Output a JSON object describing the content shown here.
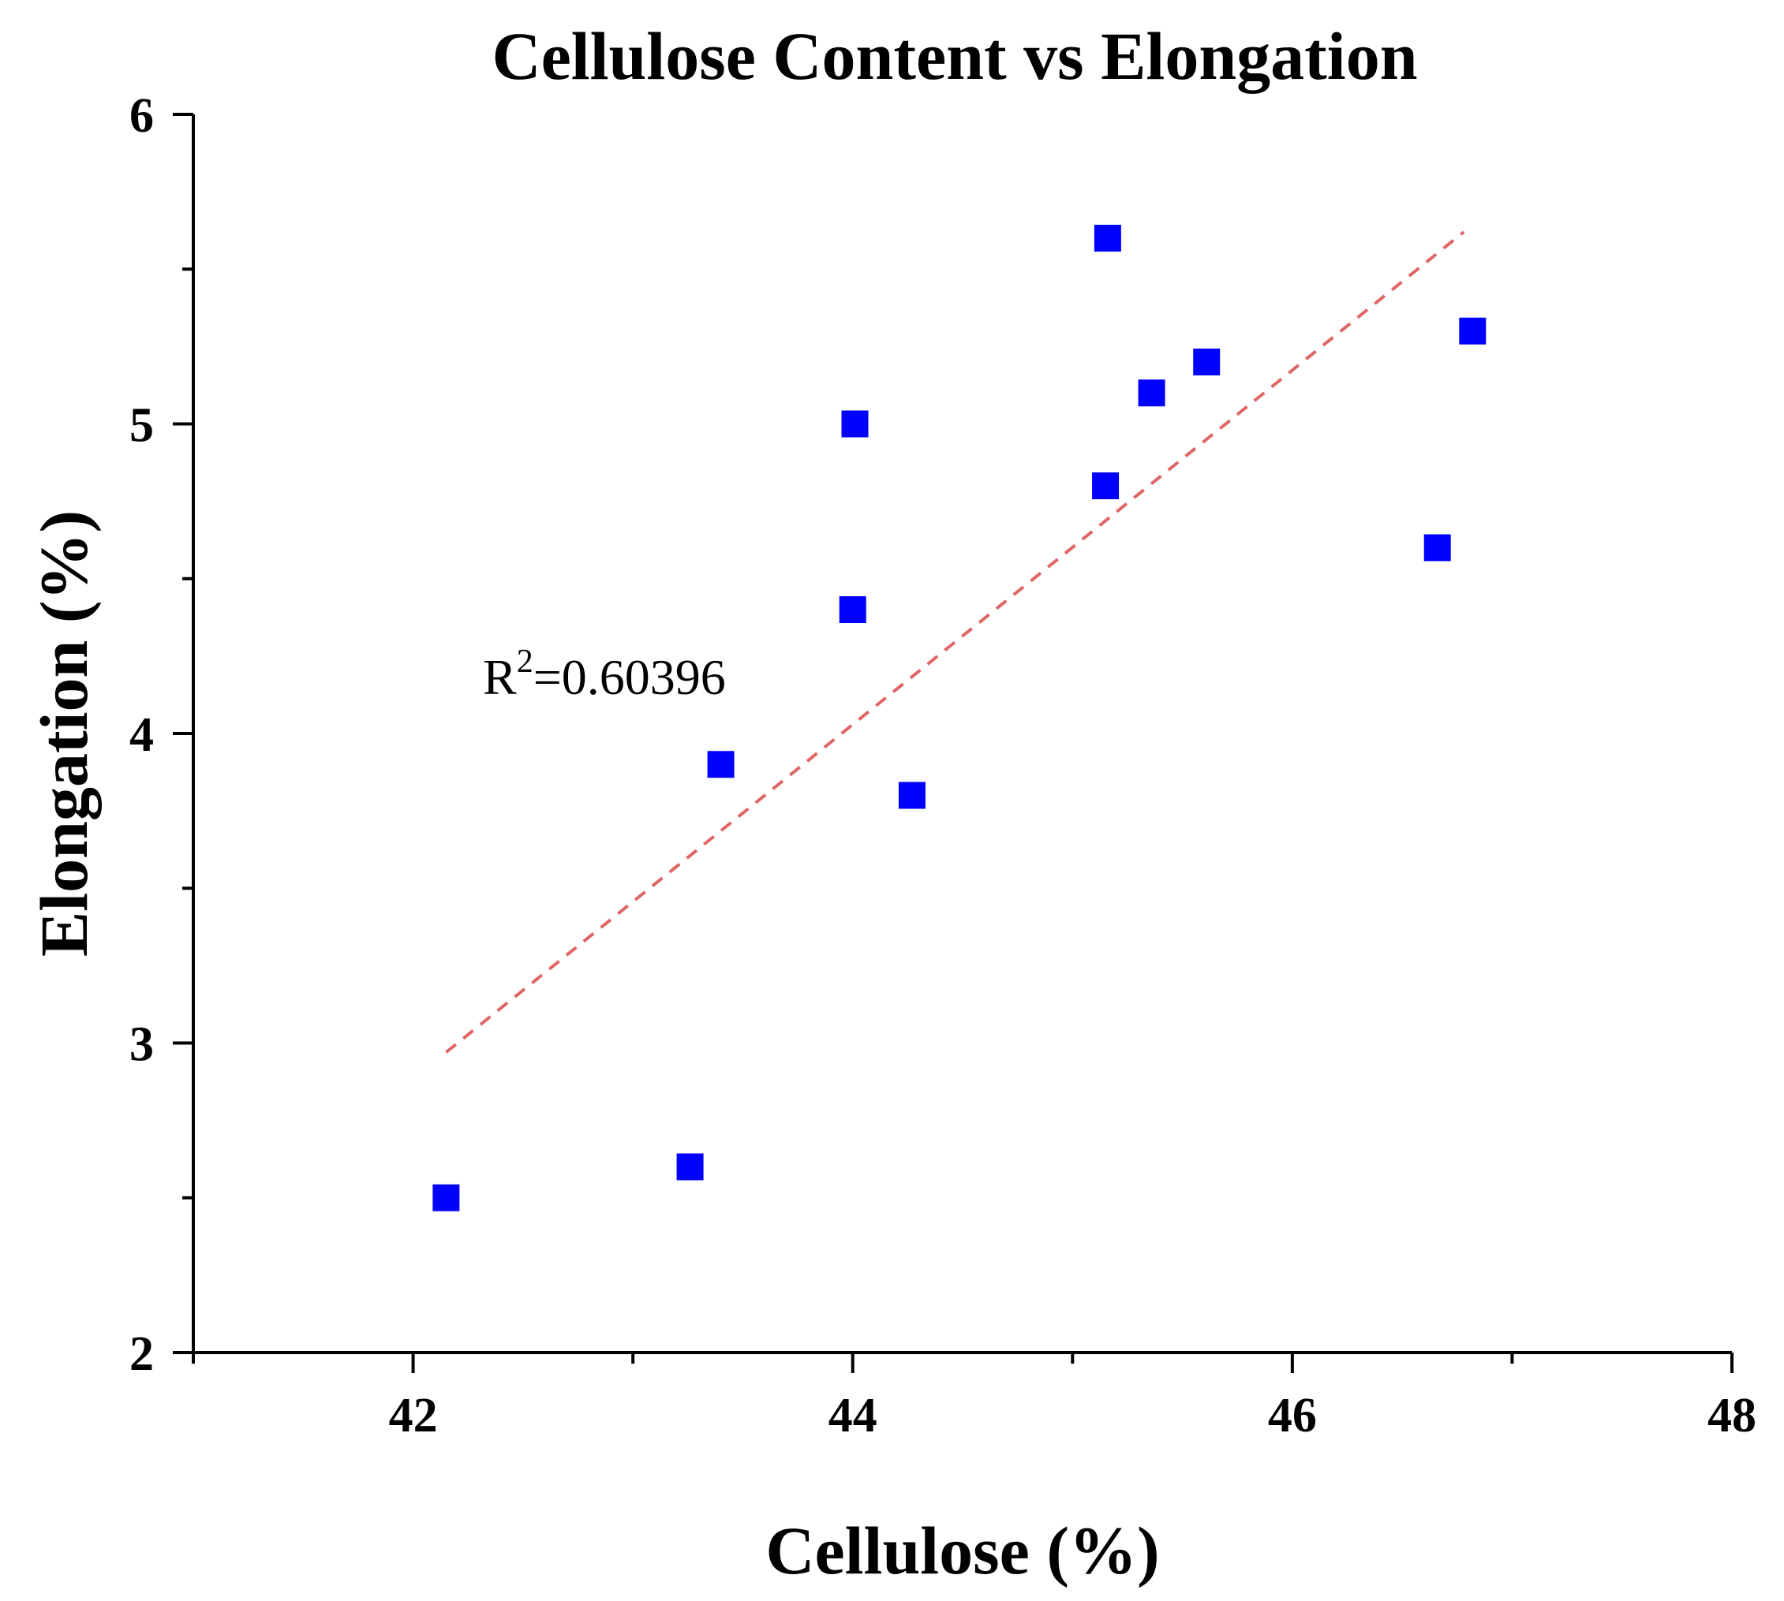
{
  "chart_data": {
    "type": "scatter",
    "title": "Cellulose Content vs Elongation",
    "xlabel": "Cellulose (%)",
    "ylabel": "Elongation (%)",
    "xlim": [
      41,
      48
    ],
    "ylim": [
      2,
      6
    ],
    "x_major_ticks": [
      42,
      44,
      46,
      48
    ],
    "x_minor_ticks": [
      41,
      43,
      45,
      47
    ],
    "y_major_ticks": [
      2,
      3,
      4,
      5,
      6
    ],
    "y_minor_ticks": [
      2.5,
      3.5,
      4.5,
      5.5
    ],
    "grid": false,
    "series": [
      {
        "name": "Elongation",
        "marker": "square",
        "color": "#0000ff",
        "points": [
          {
            "x": 42.15,
            "y": 2.5
          },
          {
            "x": 43.26,
            "y": 2.6
          },
          {
            "x": 43.4,
            "y": 3.9
          },
          {
            "x": 44.0,
            "y": 4.4
          },
          {
            "x": 44.01,
            "y": 5.0
          },
          {
            "x": 44.27,
            "y": 3.8
          },
          {
            "x": 45.15,
            "y": 4.8
          },
          {
            "x": 45.16,
            "y": 5.6
          },
          {
            "x": 45.36,
            "y": 5.1
          },
          {
            "x": 45.61,
            "y": 5.2
          },
          {
            "x": 46.66,
            "y": 4.6
          },
          {
            "x": 46.82,
            "y": 5.3
          }
        ]
      }
    ],
    "trendline": {
      "style": "dashed",
      "color": "#e06666",
      "x_start": 42.15,
      "y_start": 2.97,
      "x_end": 46.78,
      "y_end": 5.62
    },
    "annotation": {
      "base": "R",
      "superscript": "2",
      "value": "=0.60396"
    }
  }
}
